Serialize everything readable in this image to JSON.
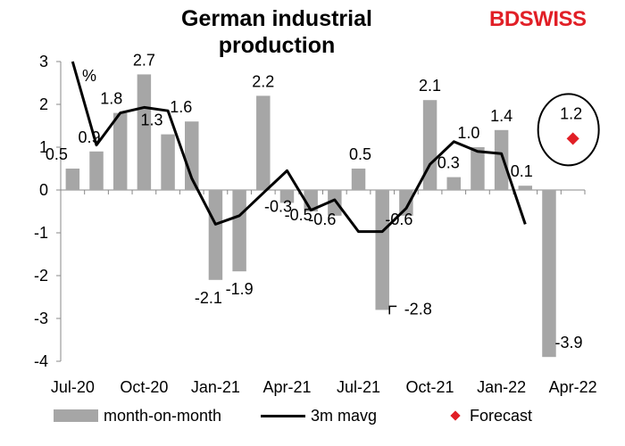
{
  "title": "German industrial production",
  "logo": {
    "part1": "BD",
    "part2": "SWISS"
  },
  "colors": {
    "bars": "#a6a6a6",
    "line": "#000000",
    "forecast": "#e11f26",
    "circle": "#000000"
  },
  "chart_data": {
    "type": "bar",
    "title": "German industrial production",
    "ylabel": "%",
    "ylim": [
      -4,
      3
    ],
    "yticks": [
      "3",
      "2",
      "1",
      "0",
      "-1",
      "-2",
      "-3",
      "-4"
    ],
    "categories": [
      "Jul-20",
      "Aug-20",
      "Sep-20",
      "Oct-20",
      "Nov-20",
      "Dec-20",
      "Jan-21",
      "Feb-21",
      "Mar-21",
      "Apr-21",
      "May-21",
      "Jun-21",
      "Jul-21",
      "Aug-21",
      "Sep-21",
      "Oct-21",
      "Nov-21",
      "Dec-21",
      "Jan-22",
      "Feb-22",
      "Mar-22",
      "Apr-22"
    ],
    "xtick_labels": [
      "Jul-20",
      "Oct-20",
      "Jan-21",
      "Apr-21",
      "Jul-21",
      "Oct-21",
      "Jan-22",
      "Apr-22"
    ],
    "series": [
      {
        "name": "month-on-month",
        "type": "bar",
        "values": [
          0.5,
          0.9,
          1.8,
          2.7,
          1.3,
          1.6,
          -2.1,
          -1.9,
          2.2,
          -0.3,
          -0.5,
          -0.6,
          0.5,
          -2.8,
          -0.6,
          2.1,
          0.3,
          1.0,
          1.4,
          0.1,
          -3.9,
          null
        ]
      },
      {
        "name": "3m mavg",
        "type": "line",
        "values": [
          3.0,
          1.05,
          1.8,
          1.93,
          1.85,
          0.27,
          -0.8,
          -0.6,
          -0.07,
          0.45,
          -0.47,
          -0.23,
          -0.97,
          -0.97,
          -0.43,
          0.6,
          1.13,
          0.9,
          0.85,
          -0.8,
          null,
          null
        ]
      },
      {
        "name": "Forecast",
        "type": "scatter",
        "values": [
          null,
          null,
          null,
          null,
          null,
          null,
          null,
          null,
          null,
          null,
          null,
          null,
          null,
          null,
          null,
          null,
          null,
          null,
          null,
          null,
          null,
          1.2
        ]
      }
    ],
    "data_labels": [
      "0.5",
      "0.9",
      "1.8",
      "2.7",
      "1.3",
      "1.6",
      "-2.1",
      "-1.9",
      "2.2",
      "-0.3",
      "-0.5",
      "-0.6",
      "0.5",
      "-2.8",
      "-0.6",
      "2.1",
      "0.3",
      "1.0",
      "1.4",
      "0.1",
      "-3.9",
      "1.2"
    ],
    "legend": [
      "month-on-month",
      "3m mavg",
      "Forecast"
    ],
    "legend_position": "bottom",
    "grid": false
  }
}
